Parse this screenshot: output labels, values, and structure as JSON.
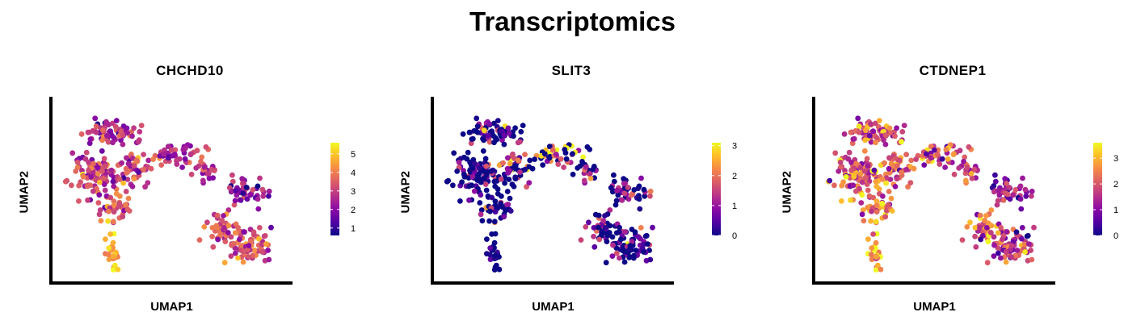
{
  "figure": {
    "title": "Transcriptomics"
  },
  "colorscale": {
    "name": "plasma",
    "stops": [
      "#0d0887",
      "#5302a3",
      "#8b0aa5",
      "#b83289",
      "#db5c68",
      "#f48849",
      "#febd2a",
      "#f0f921"
    ]
  },
  "chart_data": [
    {
      "type": "scatter",
      "title": "CHCHD10",
      "xlabel": "UMAP1",
      "ylabel": "UMAP2",
      "color_range": [
        0.6,
        5.6
      ],
      "colorbar_ticks": [
        1,
        2,
        3,
        4,
        5
      ],
      "colorbar_ticks_labels": [
        "1",
        "2",
        "3",
        "4",
        "5"
      ],
      "axis_ticks": false,
      "grid": false,
      "legend": "right",
      "pattern": "chchd10"
    },
    {
      "type": "scatter",
      "title": "SLIT3",
      "xlabel": "UMAP1",
      "ylabel": "UMAP2",
      "color_range": [
        0,
        3.1
      ],
      "colorbar_ticks": [
        0,
        1,
        2,
        3
      ],
      "colorbar_ticks_labels": [
        "0",
        "1",
        "2",
        "3"
      ],
      "axis_ticks": false,
      "grid": false,
      "legend": "right",
      "pattern": "slit3"
    },
    {
      "type": "scatter",
      "title": "CTDNEP1",
      "xlabel": "UMAP1",
      "ylabel": "UMAP2",
      "color_range": [
        0,
        3.6
      ],
      "colorbar_ticks": [
        0,
        1,
        2,
        3
      ],
      "colorbar_ticks_labels": [
        "0",
        "1",
        "2",
        "3"
      ],
      "axis_ticks": false,
      "grid": false,
      "legend": "right",
      "pattern": "ctdnep1"
    }
  ]
}
